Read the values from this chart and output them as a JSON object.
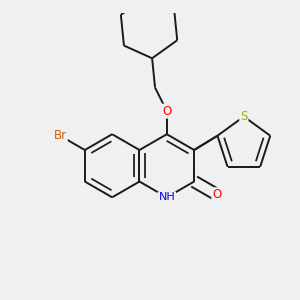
{
  "bg_color": "#f0f0f0",
  "bond_color": "#1a1a1a",
  "bond_width": 1.4,
  "dbo": 0.055,
  "atom_colors": {
    "Br": "#cc6600",
    "O": "#ff0000",
    "N": "#0000ee",
    "S": "#aaaa00",
    "C": "#1a1a1a"
  }
}
